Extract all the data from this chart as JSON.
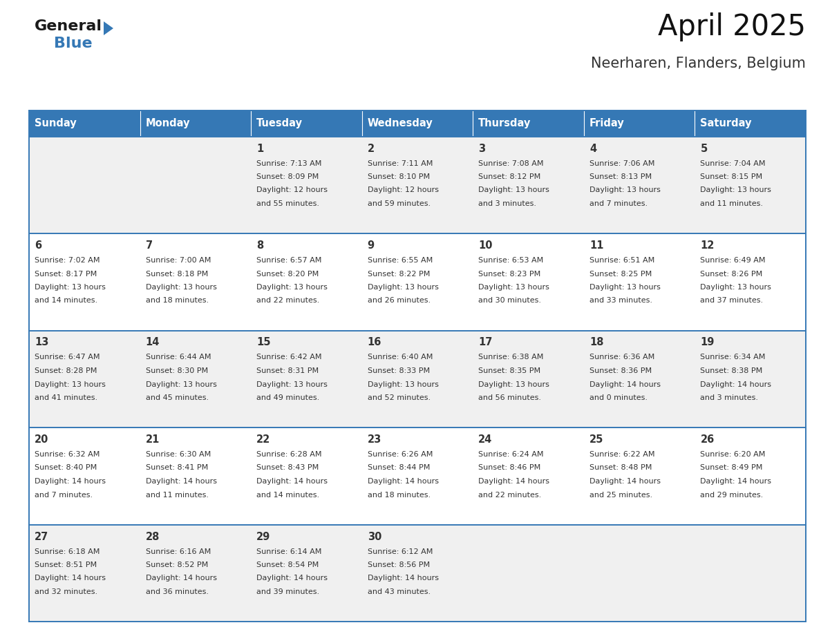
{
  "title": "April 2025",
  "subtitle": "Neerharen, Flanders, Belgium",
  "header_bg_color": "#3578b5",
  "header_text_color": "#ffffff",
  "border_color": "#3578b5",
  "text_color": "#333333",
  "row_bg_odd": "#f0f0f0",
  "row_bg_even": "#ffffff",
  "days_of_week": [
    "Sunday",
    "Monday",
    "Tuesday",
    "Wednesday",
    "Thursday",
    "Friday",
    "Saturday"
  ],
  "weeks": [
    [
      {
        "day": "",
        "sunrise": "",
        "sunset": "",
        "daylight": ""
      },
      {
        "day": "",
        "sunrise": "",
        "sunset": "",
        "daylight": ""
      },
      {
        "day": "1",
        "sunrise": "Sunrise: 7:13 AM",
        "sunset": "Sunset: 8:09 PM",
        "daylight": "Daylight: 12 hours\nand 55 minutes."
      },
      {
        "day": "2",
        "sunrise": "Sunrise: 7:11 AM",
        "sunset": "Sunset: 8:10 PM",
        "daylight": "Daylight: 12 hours\nand 59 minutes."
      },
      {
        "day": "3",
        "sunrise": "Sunrise: 7:08 AM",
        "sunset": "Sunset: 8:12 PM",
        "daylight": "Daylight: 13 hours\nand 3 minutes."
      },
      {
        "day": "4",
        "sunrise": "Sunrise: 7:06 AM",
        "sunset": "Sunset: 8:13 PM",
        "daylight": "Daylight: 13 hours\nand 7 minutes."
      },
      {
        "day": "5",
        "sunrise": "Sunrise: 7:04 AM",
        "sunset": "Sunset: 8:15 PM",
        "daylight": "Daylight: 13 hours\nand 11 minutes."
      }
    ],
    [
      {
        "day": "6",
        "sunrise": "Sunrise: 7:02 AM",
        "sunset": "Sunset: 8:17 PM",
        "daylight": "Daylight: 13 hours\nand 14 minutes."
      },
      {
        "day": "7",
        "sunrise": "Sunrise: 7:00 AM",
        "sunset": "Sunset: 8:18 PM",
        "daylight": "Daylight: 13 hours\nand 18 minutes."
      },
      {
        "day": "8",
        "sunrise": "Sunrise: 6:57 AM",
        "sunset": "Sunset: 8:20 PM",
        "daylight": "Daylight: 13 hours\nand 22 minutes."
      },
      {
        "day": "9",
        "sunrise": "Sunrise: 6:55 AM",
        "sunset": "Sunset: 8:22 PM",
        "daylight": "Daylight: 13 hours\nand 26 minutes."
      },
      {
        "day": "10",
        "sunrise": "Sunrise: 6:53 AM",
        "sunset": "Sunset: 8:23 PM",
        "daylight": "Daylight: 13 hours\nand 30 minutes."
      },
      {
        "day": "11",
        "sunrise": "Sunrise: 6:51 AM",
        "sunset": "Sunset: 8:25 PM",
        "daylight": "Daylight: 13 hours\nand 33 minutes."
      },
      {
        "day": "12",
        "sunrise": "Sunrise: 6:49 AM",
        "sunset": "Sunset: 8:26 PM",
        "daylight": "Daylight: 13 hours\nand 37 minutes."
      }
    ],
    [
      {
        "day": "13",
        "sunrise": "Sunrise: 6:47 AM",
        "sunset": "Sunset: 8:28 PM",
        "daylight": "Daylight: 13 hours\nand 41 minutes."
      },
      {
        "day": "14",
        "sunrise": "Sunrise: 6:44 AM",
        "sunset": "Sunset: 8:30 PM",
        "daylight": "Daylight: 13 hours\nand 45 minutes."
      },
      {
        "day": "15",
        "sunrise": "Sunrise: 6:42 AM",
        "sunset": "Sunset: 8:31 PM",
        "daylight": "Daylight: 13 hours\nand 49 minutes."
      },
      {
        "day": "16",
        "sunrise": "Sunrise: 6:40 AM",
        "sunset": "Sunset: 8:33 PM",
        "daylight": "Daylight: 13 hours\nand 52 minutes."
      },
      {
        "day": "17",
        "sunrise": "Sunrise: 6:38 AM",
        "sunset": "Sunset: 8:35 PM",
        "daylight": "Daylight: 13 hours\nand 56 minutes."
      },
      {
        "day": "18",
        "sunrise": "Sunrise: 6:36 AM",
        "sunset": "Sunset: 8:36 PM",
        "daylight": "Daylight: 14 hours\nand 0 minutes."
      },
      {
        "day": "19",
        "sunrise": "Sunrise: 6:34 AM",
        "sunset": "Sunset: 8:38 PM",
        "daylight": "Daylight: 14 hours\nand 3 minutes."
      }
    ],
    [
      {
        "day": "20",
        "sunrise": "Sunrise: 6:32 AM",
        "sunset": "Sunset: 8:40 PM",
        "daylight": "Daylight: 14 hours\nand 7 minutes."
      },
      {
        "day": "21",
        "sunrise": "Sunrise: 6:30 AM",
        "sunset": "Sunset: 8:41 PM",
        "daylight": "Daylight: 14 hours\nand 11 minutes."
      },
      {
        "day": "22",
        "sunrise": "Sunrise: 6:28 AM",
        "sunset": "Sunset: 8:43 PM",
        "daylight": "Daylight: 14 hours\nand 14 minutes."
      },
      {
        "day": "23",
        "sunrise": "Sunrise: 6:26 AM",
        "sunset": "Sunset: 8:44 PM",
        "daylight": "Daylight: 14 hours\nand 18 minutes."
      },
      {
        "day": "24",
        "sunrise": "Sunrise: 6:24 AM",
        "sunset": "Sunset: 8:46 PM",
        "daylight": "Daylight: 14 hours\nand 22 minutes."
      },
      {
        "day": "25",
        "sunrise": "Sunrise: 6:22 AM",
        "sunset": "Sunset: 8:48 PM",
        "daylight": "Daylight: 14 hours\nand 25 minutes."
      },
      {
        "day": "26",
        "sunrise": "Sunrise: 6:20 AM",
        "sunset": "Sunset: 8:49 PM",
        "daylight": "Daylight: 14 hours\nand 29 minutes."
      }
    ],
    [
      {
        "day": "27",
        "sunrise": "Sunrise: 6:18 AM",
        "sunset": "Sunset: 8:51 PM",
        "daylight": "Daylight: 14 hours\nand 32 minutes."
      },
      {
        "day": "28",
        "sunrise": "Sunrise: 6:16 AM",
        "sunset": "Sunset: 8:52 PM",
        "daylight": "Daylight: 14 hours\nand 36 minutes."
      },
      {
        "day": "29",
        "sunrise": "Sunrise: 6:14 AM",
        "sunset": "Sunset: 8:54 PM",
        "daylight": "Daylight: 14 hours\nand 39 minutes."
      },
      {
        "day": "30",
        "sunrise": "Sunrise: 6:12 AM",
        "sunset": "Sunset: 8:56 PM",
        "daylight": "Daylight: 14 hours\nand 43 minutes."
      },
      {
        "day": "",
        "sunrise": "",
        "sunset": "",
        "daylight": ""
      },
      {
        "day": "",
        "sunrise": "",
        "sunset": "",
        "daylight": ""
      },
      {
        "day": "",
        "sunrise": "",
        "sunset": "",
        "daylight": ""
      }
    ]
  ],
  "logo_text_general": "General",
  "logo_text_blue": "Blue",
  "logo_color_general": "#1a1a1a",
  "logo_color_blue": "#3578b5",
  "logo_triangle_color": "#3578b5"
}
